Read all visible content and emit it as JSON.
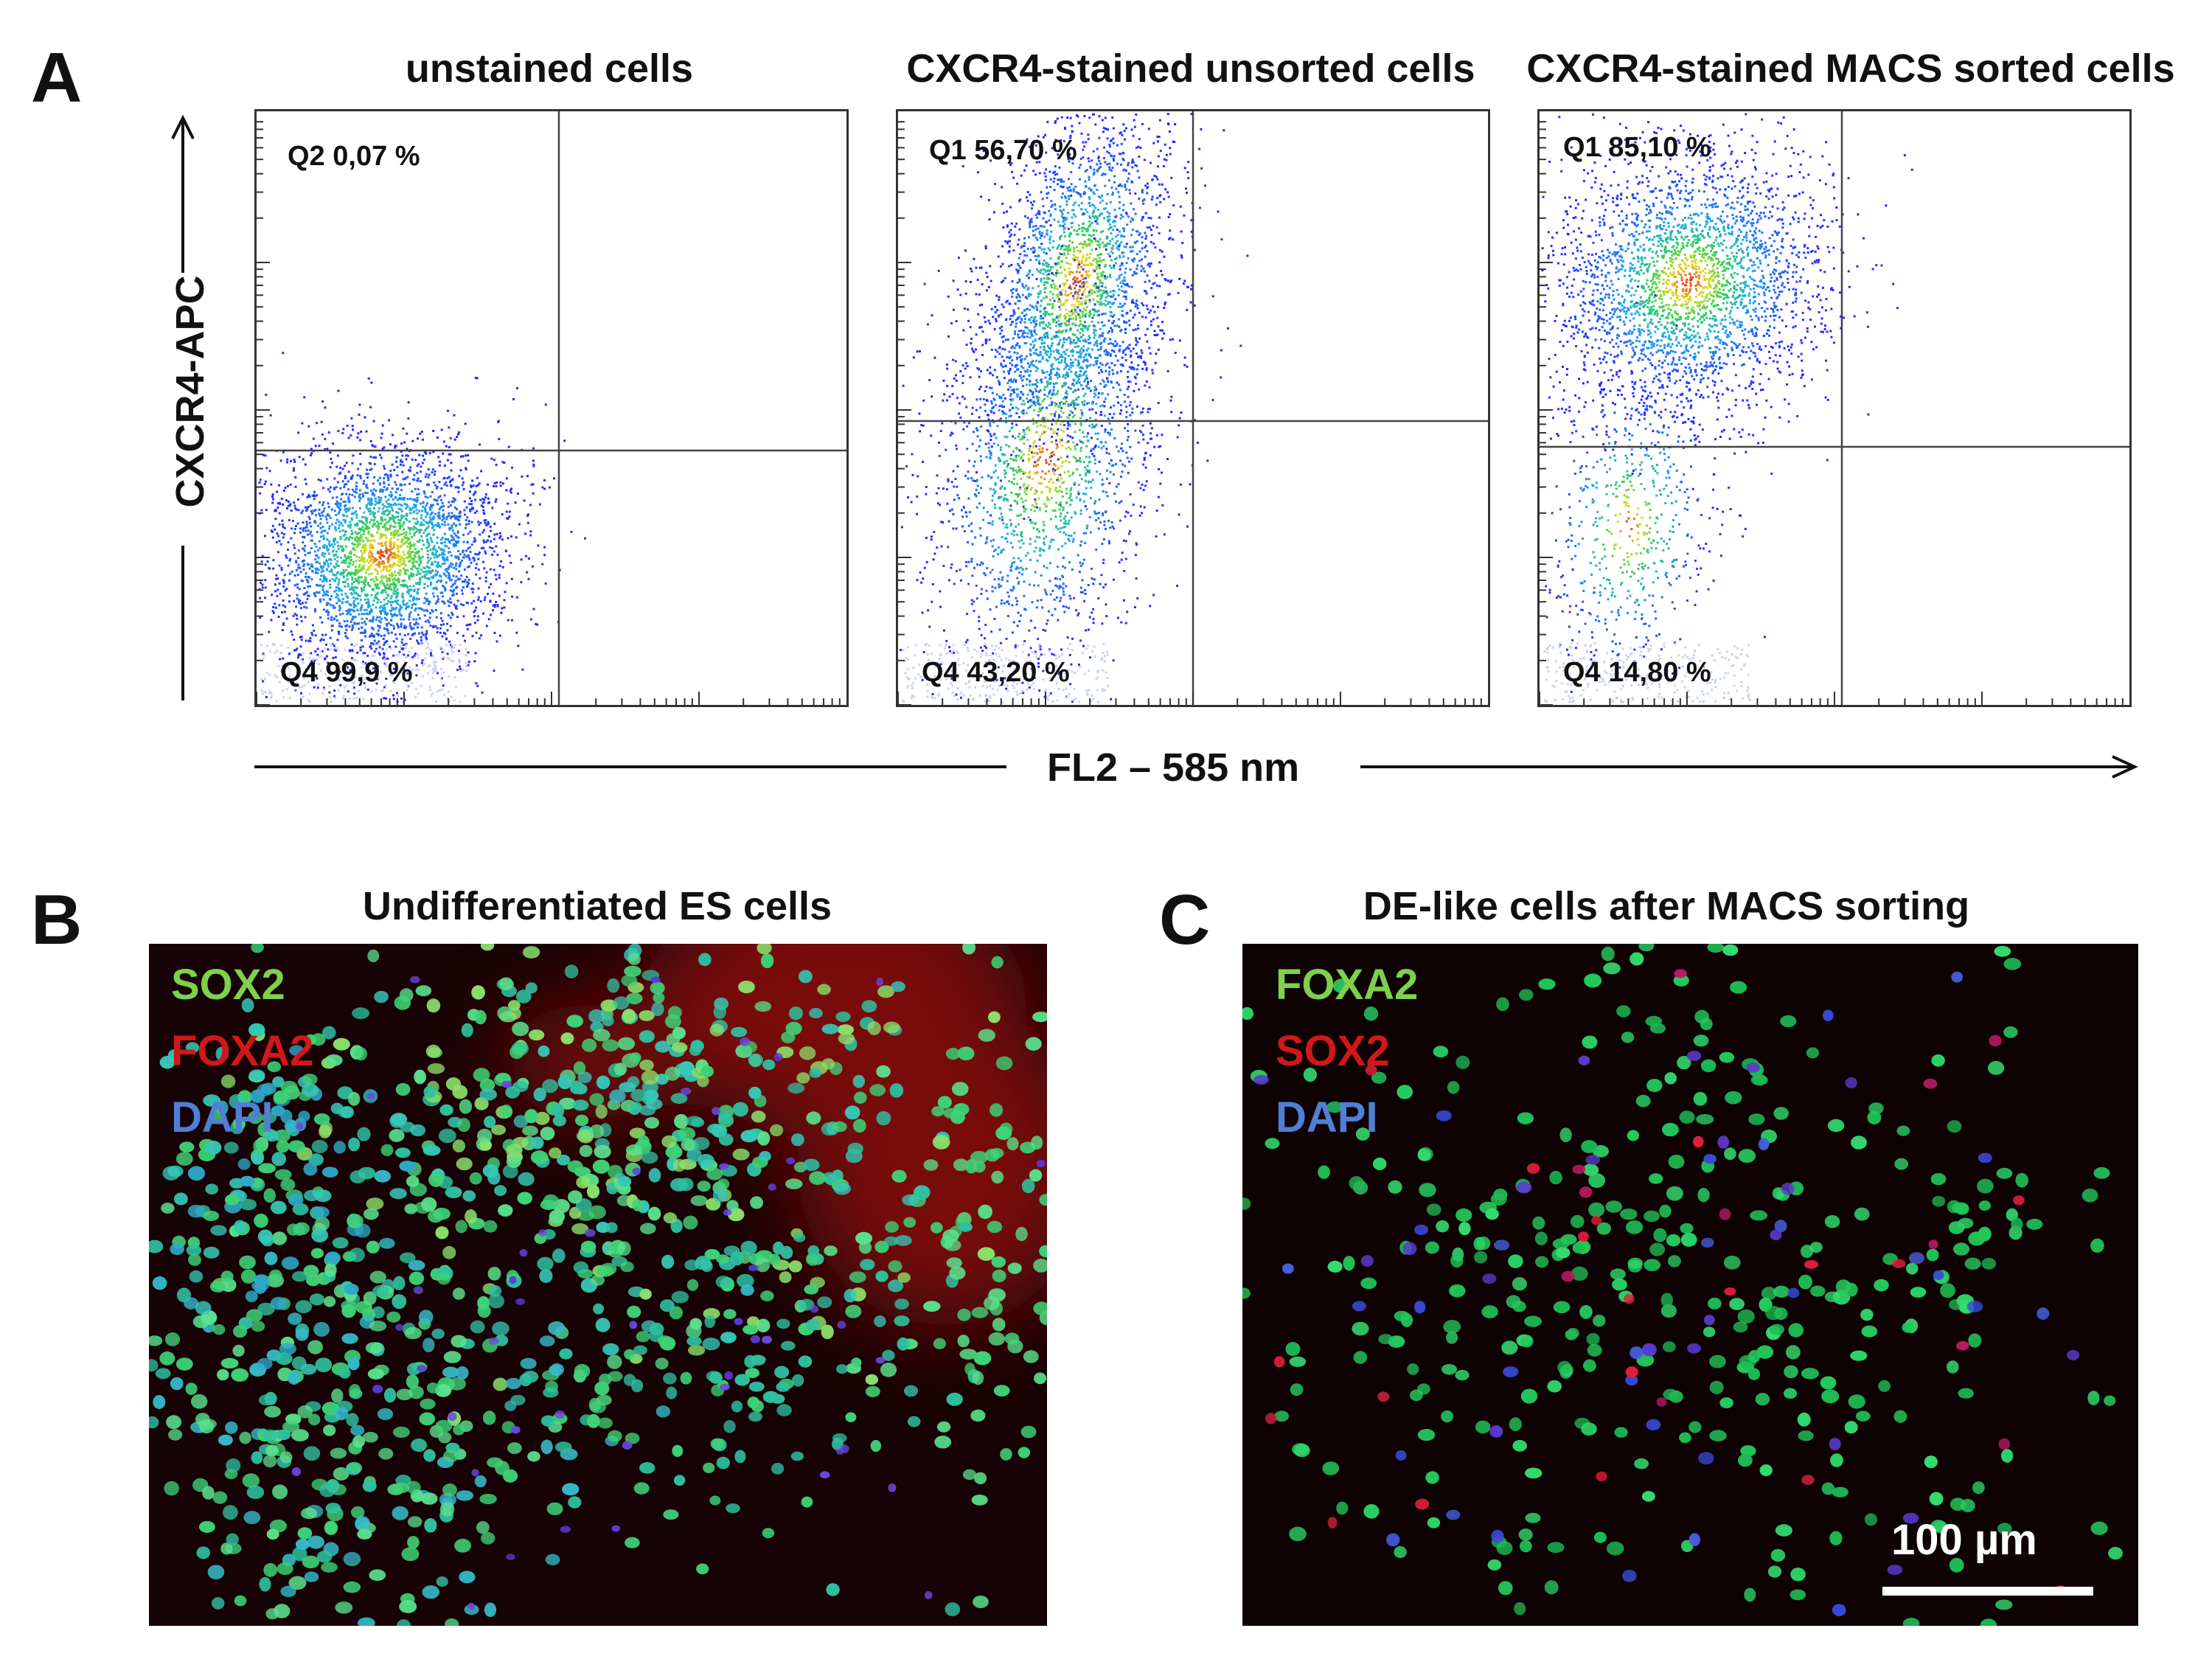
{
  "panels": {
    "a": {
      "letter": "A"
    },
    "b": {
      "letter": "B"
    },
    "c": {
      "letter": "C"
    }
  },
  "flow": {
    "y_axis_label": "CXCR4-APC",
    "x_axis_label": "FL2 – 585 nm",
    "plots": [
      {
        "title": "unstained cells",
        "upper_label": "Q2 0,07 %",
        "lower_label": "Q4 99,9 %",
        "upper_fraction": 0.0007,
        "lower_fraction": 0.999
      },
      {
        "title": "CXCR4-stained unsorted cells",
        "upper_label": "Q1 56,70 %",
        "lower_label": "Q4 43,20 %",
        "upper_fraction": 0.567,
        "lower_fraction": 0.432
      },
      {
        "title": "CXCR4-stained MACS sorted cells",
        "upper_label": "Q1 85,10 %",
        "lower_label": "Q4 14,80 %",
        "upper_fraction": 0.851,
        "lower_fraction": 0.148
      }
    ]
  },
  "images": {
    "b": {
      "title": "Undifferentiated ES cells",
      "legend": [
        {
          "text": "SOX2",
          "color": "#7ed14a"
        },
        {
          "text": "FOXA2",
          "color": "#d01818"
        },
        {
          "text": "DAPI",
          "color": "#4f7fd6"
        }
      ]
    },
    "c": {
      "title": "DE-like cells after MACS sorting",
      "legend": [
        {
          "text": "FOXA2",
          "color": "#7ed14a"
        },
        {
          "text": "SOX2",
          "color": "#d01818"
        },
        {
          "text": "DAPI",
          "color": "#4f7fd6"
        }
      ],
      "scale_bar_label": "100 µm"
    }
  }
}
